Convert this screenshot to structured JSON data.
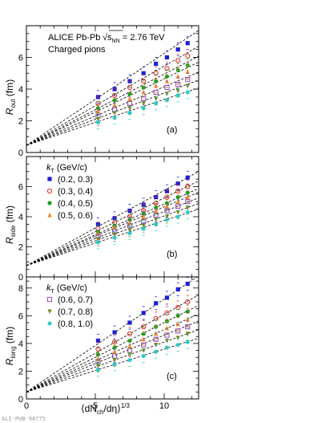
{
  "figure": {
    "header_line1": "ALICE Pb-Pb",
    "header_energy": "√s",
    "header_energy_sub": "NN",
    "header_energy_value": " = 2.76 TeV",
    "header_line2": "Charged pions",
    "watermark": "ALI-PUB-94775",
    "xlabel_main": "⟨dN",
    "xlabel_sub": "ch",
    "xlabel_rest": "/dη⟩",
    "xlabel_sup": "1/3",
    "kt_label": "k",
    "kt_sub": "T",
    "kt_unit": " (GeV/c)"
  },
  "colors": {
    "blue": "#1f1fd6",
    "red": "#e8241f",
    "green": "#1f9e1f",
    "orange": "#f08a1f",
    "purple": "#9a45c8",
    "olive": "#7a8a1a",
    "cyan": "#24c8c8",
    "fit": "#000000"
  },
  "chart_data": [
    {
      "type": "scatter",
      "panel_tag": "(a)",
      "ylabel": "R",
      "ylabel_sub": "out",
      "ylabel_unit": " (fm)",
      "xlim": [
        0,
        12.5
      ],
      "ylim": [
        0,
        8
      ],
      "x_ticks": [
        0,
        5,
        10
      ],
      "y_ticks": [
        0,
        2,
        4,
        6
      ],
      "x": [
        5.2,
        6.4,
        7.5,
        8.5,
        9.4,
        10.2,
        11.0,
        11.7
      ],
      "series": [
        {
          "values": [
            3.5,
            4.0,
            4.5,
            5.0,
            5.6,
            6.0,
            6.5,
            6.9
          ],
          "color": "blue",
          "marker": "square"
        },
        {
          "values": [
            3.1,
            3.6,
            4.1,
            4.5,
            5.0,
            5.3,
            5.8,
            6.1
          ],
          "color": "red",
          "marker": "open-circle"
        },
        {
          "values": [
            2.8,
            3.3,
            3.7,
            4.1,
            4.5,
            4.8,
            5.2,
            5.5
          ],
          "color": "green",
          "marker": "circle"
        },
        {
          "values": [
            2.6,
            3.0,
            3.4,
            3.8,
            4.2,
            4.5,
            4.8,
            5.1
          ],
          "color": "orange",
          "marker": "triangle"
        },
        {
          "values": [
            2.3,
            2.7,
            3.1,
            3.4,
            3.8,
            4.1,
            4.3,
            4.6
          ],
          "color": "purple",
          "marker": "open-square"
        },
        {
          "values": [
            2.1,
            2.5,
            2.8,
            3.1,
            3.4,
            3.7,
            3.9,
            4.2
          ],
          "color": "olive",
          "marker": "triangle-down"
        },
        {
          "values": [
            1.9,
            2.2,
            2.5,
            2.8,
            3.1,
            3.3,
            3.6,
            3.8
          ],
          "color": "cyan",
          "marker": "star"
        }
      ],
      "fits": [
        {
          "intercept": 0.45,
          "slope": 0.58
        },
        {
          "intercept": 0.45,
          "slope": 0.5
        },
        {
          "intercept": 0.45,
          "slope": 0.45
        },
        {
          "intercept": 0.45,
          "slope": 0.42
        },
        {
          "intercept": 0.45,
          "slope": 0.37
        },
        {
          "intercept": 0.45,
          "slope": 0.33
        },
        {
          "intercept": 0.45,
          "slope": 0.29
        }
      ],
      "legend": []
    },
    {
      "type": "scatter",
      "panel_tag": "(b)",
      "ylabel": "R",
      "ylabel_sub": "side",
      "ylabel_unit": " (fm)",
      "xlim": [
        0,
        12.5
      ],
      "ylim": [
        0,
        8
      ],
      "x_ticks": [
        0,
        5,
        10
      ],
      "y_ticks": [
        0,
        2,
        4,
        6
      ],
      "x": [
        5.2,
        6.4,
        7.5,
        8.5,
        9.4,
        10.2,
        11.0,
        11.7
      ],
      "series": [
        {
          "values": [
            3.5,
            3.9,
            4.4,
            4.8,
            5.3,
            5.7,
            6.2,
            6.6
          ],
          "color": "blue",
          "marker": "square"
        },
        {
          "values": [
            3.2,
            3.6,
            4.0,
            4.4,
            4.9,
            5.3,
            5.7,
            6.0
          ],
          "color": "red",
          "marker": "open-circle"
        },
        {
          "values": [
            3.0,
            3.4,
            3.8,
            4.2,
            4.6,
            4.9,
            5.3,
            5.6
          ],
          "color": "green",
          "marker": "circle"
        },
        {
          "values": [
            2.9,
            3.3,
            3.6,
            4.0,
            4.4,
            4.7,
            5.0,
            5.3
          ],
          "color": "orange",
          "marker": "triangle"
        },
        {
          "values": [
            2.7,
            3.0,
            3.4,
            3.7,
            4.1,
            4.4,
            4.7,
            5.0
          ],
          "color": "purple",
          "marker": "open-square"
        },
        {
          "values": [
            2.5,
            2.8,
            3.1,
            3.4,
            3.8,
            4.0,
            4.3,
            4.6
          ],
          "color": "olive",
          "marker": "triangle-down"
        },
        {
          "values": [
            2.3,
            2.6,
            2.9,
            3.2,
            3.5,
            3.8,
            4.0,
            4.3
          ],
          "color": "cyan",
          "marker": "star"
        }
      ],
      "fits": [
        {
          "intercept": 0.75,
          "slope": 0.5
        },
        {
          "intercept": 0.75,
          "slope": 0.45
        },
        {
          "intercept": 0.75,
          "slope": 0.41
        },
        {
          "intercept": 0.75,
          "slope": 0.39
        },
        {
          "intercept": 0.75,
          "slope": 0.36
        },
        {
          "intercept": 0.75,
          "slope": 0.33
        },
        {
          "intercept": 0.75,
          "slope": 0.3
        }
      ],
      "legend": [
        {
          "label": "(0.2, 0.3)",
          "color": "blue",
          "marker": "square"
        },
        {
          "label": "(0.3, 0.4)",
          "color": "red",
          "marker": "open-circle"
        },
        {
          "label": "(0.4, 0.5)",
          "color": "green",
          "marker": "circle"
        },
        {
          "label": "(0.5, 0.6)",
          "color": "orange",
          "marker": "triangle"
        }
      ]
    },
    {
      "type": "scatter",
      "panel_tag": "(c)",
      "ylabel": "R",
      "ylabel_sub": "long",
      "ylabel_unit": " (fm)",
      "xlim": [
        0,
        12.5
      ],
      "ylim": [
        0,
        8.8
      ],
      "x_ticks": [
        0,
        5,
        10
      ],
      "y_ticks": [
        0,
        2,
        4,
        6,
        8
      ],
      "x": [
        5.2,
        6.4,
        7.5,
        8.5,
        9.4,
        10.2,
        11.0,
        11.7
      ],
      "series": [
        {
          "values": [
            4.2,
            4.8,
            5.5,
            6.2,
            6.9,
            7.3,
            7.9,
            8.3
          ],
          "color": "blue",
          "marker": "square"
        },
        {
          "values": [
            3.6,
            4.1,
            4.7,
            5.2,
            5.8,
            6.2,
            6.6,
            7.0
          ],
          "color": "red",
          "marker": "open-circle"
        },
        {
          "values": [
            3.2,
            3.7,
            4.2,
            4.7,
            5.2,
            5.6,
            6.0,
            6.3
          ],
          "color": "green",
          "marker": "circle"
        },
        {
          "values": [
            2.9,
            3.4,
            3.8,
            4.3,
            4.7,
            5.1,
            5.4,
            5.7
          ],
          "color": "orange",
          "marker": "triangle"
        },
        {
          "values": [
            2.7,
            3.1,
            3.5,
            3.9,
            4.3,
            4.6,
            4.9,
            5.2
          ],
          "color": "purple",
          "marker": "open-square"
        },
        {
          "values": [
            2.4,
            2.8,
            3.2,
            3.5,
            3.9,
            4.2,
            4.4,
            4.7
          ],
          "color": "olive",
          "marker": "triangle-down"
        },
        {
          "values": [
            2.1,
            2.5,
            2.8,
            3.1,
            3.4,
            3.7,
            3.9,
            4.1
          ],
          "color": "cyan",
          "marker": "star"
        }
      ],
      "fits": [
        {
          "intercept": 0.5,
          "slope": 0.67
        },
        {
          "intercept": 0.5,
          "slope": 0.56
        },
        {
          "intercept": 0.5,
          "slope": 0.5
        },
        {
          "intercept": 0.5,
          "slope": 0.45
        },
        {
          "intercept": 0.5,
          "slope": 0.41
        },
        {
          "intercept": 0.5,
          "slope": 0.36
        },
        {
          "intercept": 0.5,
          "slope": 0.31
        }
      ],
      "legend": [
        {
          "label": "(0.6, 0.7)",
          "color": "purple",
          "marker": "open-square"
        },
        {
          "label": "(0.7, 0.8)",
          "color": "olive",
          "marker": "triangle-down"
        },
        {
          "label": "(0.8, 1.0)",
          "color": "cyan",
          "marker": "star"
        }
      ]
    }
  ]
}
